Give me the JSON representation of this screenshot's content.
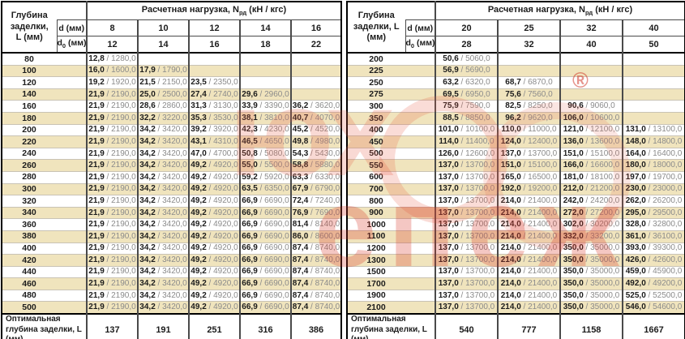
{
  "watermark": {
    "line1": "юх",
    "line2": "епеж",
    "registered": "®"
  },
  "tables": [
    {
      "depth_header": "Глубина заделки, L (мм)",
      "load_pre": "Расчетная нагрузка, N",
      "load_sub": "рд",
      "load_post": " (кН / кгс)",
      "d_label": "d (мм)",
      "d0_pre": "d",
      "d0_sub": "0",
      "d0_post": " (мм)",
      "d_values": [
        "8",
        "10",
        "12",
        "14",
        "16"
      ],
      "d0_values": [
        "12",
        "14",
        "16",
        "18",
        "22"
      ],
      "rows": [
        {
          "L": "80",
          "cells": [
            "12,8 / 1280,0",
            "",
            "",
            "",
            ""
          ]
        },
        {
          "L": "100",
          "cells": [
            "16,0 / 1600,0",
            "17,9 / 1790,0",
            "",
            "",
            ""
          ]
        },
        {
          "L": "120",
          "cells": [
            "19,2 / 1920,0",
            "21,5 / 2150,0",
            "23,5 / 2350,0",
            "",
            ""
          ]
        },
        {
          "L": "140",
          "cells": [
            "21,9 / 2190,0",
            "25,0 / 2500,0",
            "27,4 / 2740,0",
            "29,6 / 2960,0",
            ""
          ]
        },
        {
          "L": "160",
          "cells": [
            "21,9 / 2190,0",
            "28,6 / 2860,0",
            "31,3 / 3130,0",
            "33,9 / 3390,0",
            "36,2 / 3620,0"
          ]
        },
        {
          "L": "180",
          "cells": [
            "21,9 / 2190,0",
            "32,2 / 3220,0",
            "35,3 / 3530,0",
            "38,1 / 3810,0",
            "40,7 / 4070,0"
          ]
        },
        {
          "L": "200",
          "cells": [
            "21,9 / 2190,0",
            "34,2 / 3420,0",
            "39,2 / 3920,0",
            "42,3 / 4230,0",
            "45,2 / 4520,0"
          ]
        },
        {
          "L": "220",
          "cells": [
            "21,9 / 2190,0",
            "34,2 / 3420,0",
            "43,1 / 4310,0",
            "46,5 / 4650,0",
            "49,8 / 4980,0"
          ]
        },
        {
          "L": "240",
          "cells": [
            "21,9 / 2190,0",
            "34,2 / 3420,0",
            "47,0 / 4700,0",
            "50,8 / 5080,0",
            "54,3 / 5430,0"
          ]
        },
        {
          "L": "260",
          "cells": [
            "21,9 / 2190,0",
            "34,2 / 3420,0",
            "49,2 / 4920,0",
            "55,0 / 5500,0",
            "58,8 / 5880,0"
          ]
        },
        {
          "L": "280",
          "cells": [
            "21,9 / 2190,0",
            "34,2 / 3420,0",
            "49,2 / 4920,0",
            "59,2 / 5920,0",
            "63,3 / 6330,0"
          ]
        },
        {
          "L": "300",
          "cells": [
            "21,9 / 2190,0",
            "34,2 / 3420,0",
            "49,2 / 4920,0",
            "63,5 / 6350,0",
            "67,9 / 6790,0"
          ]
        },
        {
          "L": "320",
          "cells": [
            "21,9 / 2190,0",
            "34,2 / 3420,0",
            "49,2 / 4920,0",
            "66,9 / 6690,0",
            "72,4 / 7240,0"
          ]
        },
        {
          "L": "340",
          "cells": [
            "21,9 / 2190,0",
            "34,2 / 3420,0",
            "49,2 / 4920,0",
            "66,9 / 6690,0",
            "76,9 / 7690,0"
          ]
        },
        {
          "L": "360",
          "cells": [
            "21,9 / 2190,0",
            "34,2 / 3420,0",
            "49,2 / 4920,0",
            "66,9 / 6690,0",
            "81,4 / 8140,0"
          ]
        },
        {
          "L": "380",
          "cells": [
            "21,9 / 2190,0",
            "34,2 / 3420,0",
            "49,2 / 4920,0",
            "66,9 / 6690,0",
            "86,0 / 8600,0"
          ]
        },
        {
          "L": "400",
          "cells": [
            "21,9 / 2190,0",
            "34,2 / 3420,0",
            "49,2 / 4920,0",
            "66,9 / 6690,0",
            "87,4 / 8740,0"
          ]
        },
        {
          "L": "420",
          "cells": [
            "21,9 / 2190,0",
            "34,2 / 3420,0",
            "49,2 / 4920,0",
            "66,9 / 6690,0",
            "87,4 / 8740,0"
          ]
        },
        {
          "L": "440",
          "cells": [
            "21,9 / 2190,0",
            "34,2 / 3420,0",
            "49,2 / 4920,0",
            "66,9 / 6690,0",
            "87,4 / 8740,0"
          ]
        },
        {
          "L": "460",
          "cells": [
            "21,9 / 2190,0",
            "34,2 / 3420,0",
            "49,2 / 4920,0",
            "66,9 / 6690,0",
            "87,4 / 8740,0"
          ]
        },
        {
          "L": "480",
          "cells": [
            "21,9 / 2190,0",
            "34,2 / 3420,0",
            "49,2 / 4920,0",
            "66,9 / 6690,0",
            "87,4 / 8740,0"
          ]
        },
        {
          "L": "500",
          "cells": [
            "21,9 / 2190,0",
            "34,2 / 3420,0",
            "49,2 / 4920,0",
            "66,9 / 6690,0",
            "87,4 / 8740,0"
          ]
        }
      ],
      "optimal_label": "Оптимальная глубина заделки, L (мм)",
      "optimal_values": [
        "137",
        "191",
        "251",
        "316",
        "386"
      ]
    },
    {
      "depth_header": "Глубина заделки, L (мм)",
      "load_pre": "Расчетная нагрузка, N",
      "load_sub": "рд",
      "load_post": " (кН / кгс)",
      "d_label": "d (мм)",
      "d0_pre": "d",
      "d0_sub": "0",
      "d0_post": " (мм)",
      "d_values": [
        "20",
        "25",
        "32",
        "40"
      ],
      "d0_values": [
        "28",
        "32",
        "40",
        "50"
      ],
      "rows": [
        {
          "L": "200",
          "cells": [
            "50,6 / 5060,0",
            "",
            "",
            ""
          ]
        },
        {
          "L": "225",
          "cells": [
            "56,9 / 5690,0",
            "",
            "",
            ""
          ]
        },
        {
          "L": "250",
          "cells": [
            "63,2 / 6320,0",
            "68,7 / 6870,0",
            "",
            ""
          ]
        },
        {
          "L": "275",
          "cells": [
            "69,5 / 6950,0",
            "75,6 / 7560,0",
            "",
            ""
          ]
        },
        {
          "L": "300",
          "cells": [
            "75,9 / 7590,0",
            "82,5 / 8250,0",
            "90,6 / 9060,0",
            ""
          ]
        },
        {
          "L": "350",
          "cells": [
            "88,5 / 8850,0",
            "96,2 / 9620,0",
            "106,0 / 10600,0",
            ""
          ]
        },
        {
          "L": "400",
          "cells": [
            "101,0 / 10100,0",
            "110,0 / 11000,0",
            "121,0 / 12100,0",
            "131,0 / 13100,0"
          ]
        },
        {
          "L": "450",
          "cells": [
            "114,0 / 11400,0",
            "124,0 / 12400,0",
            "136,0 / 13600,0",
            "148,0 / 14800,0"
          ]
        },
        {
          "L": "500",
          "cells": [
            "126,0 / 12600,0",
            "137,0 / 13700,0",
            "151,0 / 15100,0",
            "164,0 / 16400,0"
          ]
        },
        {
          "L": "550",
          "cells": [
            "137,0 / 13700,0",
            "151,0 / 15100,0",
            "166,0 / 16600,0",
            "180,0 / 18000,0"
          ]
        },
        {
          "L": "600",
          "cells": [
            "137,0 / 13700,0",
            "165,0 / 16500,0",
            "181,0 / 18100,0",
            "197,0 / 19700,0"
          ]
        },
        {
          "L": "700",
          "cells": [
            "137,0 / 13700,0",
            "192,0 / 19200,0",
            "212,0 / 21200,0",
            "230,0 / 23000,0"
          ]
        },
        {
          "L": "800",
          "cells": [
            "137,0 / 13700,0",
            "214,0 / 21400,0",
            "242,0 / 24200,0",
            "262,0 / 26200,0"
          ]
        },
        {
          "L": "900",
          "cells": [
            "137,0 / 13700,0",
            "214,0 / 21400,0",
            "272,0 / 27200,0",
            "295,0 / 29500,0"
          ]
        },
        {
          "L": "1000",
          "cells": [
            "137,0 / 13700,0",
            "214,0 / 21400,0",
            "302,0 / 30200,0",
            "328,0 / 32800,0"
          ]
        },
        {
          "L": "1100",
          "cells": [
            "137,0 / 13700,0",
            "214,0 / 21400,0",
            "332,0 / 33200,0",
            "361,0 / 36100,0"
          ]
        },
        {
          "L": "1200",
          "cells": [
            "137,0 / 13700,0",
            "214,0 / 21400,0",
            "350,0 / 35000,0",
            "393,0 / 39300,0"
          ]
        },
        {
          "L": "1300",
          "cells": [
            "137,0 / 13700,0",
            "214,0 / 21400,0",
            "350,0 / 35000,0",
            "426,0 / 42600,0"
          ]
        },
        {
          "L": "1500",
          "cells": [
            "137,0 / 13700,0",
            "214,0 / 21400,0",
            "350,0 / 35000,0",
            "459,0 / 45900,0"
          ]
        },
        {
          "L": "1700",
          "cells": [
            "137,0 / 13700,0",
            "214,0 / 21400,0",
            "350,0 / 35000,0",
            "492,0 / 49200,0"
          ]
        },
        {
          "L": "1900",
          "cells": [
            "137,0 / 13700,0",
            "214,0 / 21400,0",
            "350,0 / 35000,0",
            "525,0 / 52500,0"
          ]
        },
        {
          "L": "2100",
          "cells": [
            "137,0 / 13700,0",
            "214,0 / 21400,0",
            "350,0 / 35000,0",
            "546,0 / 54600,0"
          ]
        }
      ],
      "optimal_label": "Оптимальная глубина заделки, L (мм)",
      "optimal_values": [
        "540",
        "777",
        "1158",
        "1667"
      ]
    }
  ]
}
